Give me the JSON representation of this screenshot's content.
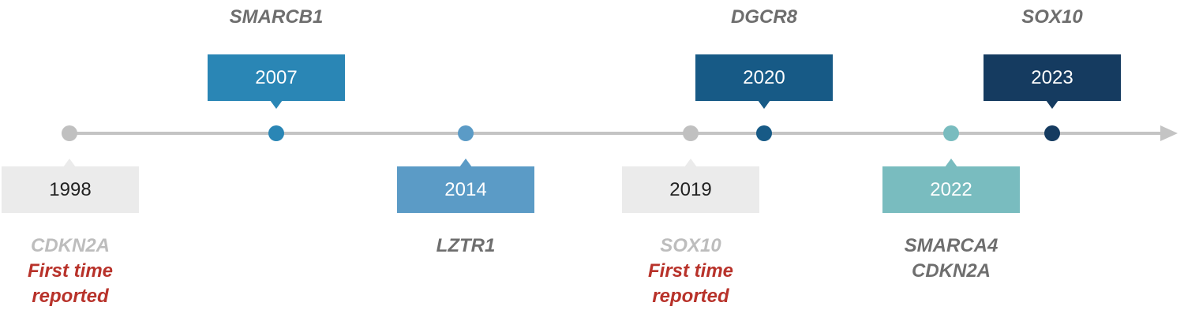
{
  "events": [
    {
      "year": "1998",
      "genes": [
        "CDKN2A"
      ],
      "note": "First time reported"
    },
    {
      "year": "2007",
      "genes": [
        "SMARCB1"
      ]
    },
    {
      "year": "2014",
      "genes": [
        "LZTR1"
      ]
    },
    {
      "year": "2019",
      "genes": [
        "SOX10"
      ],
      "note": "First time reported"
    },
    {
      "year": "2020",
      "genes": [
        "DGCR8"
      ]
    },
    {
      "year": "2022",
      "genes": [
        "SMARCA4",
        "CDKN2A"
      ]
    },
    {
      "year": "2023",
      "genes": [
        "SOX10"
      ]
    }
  ]
}
